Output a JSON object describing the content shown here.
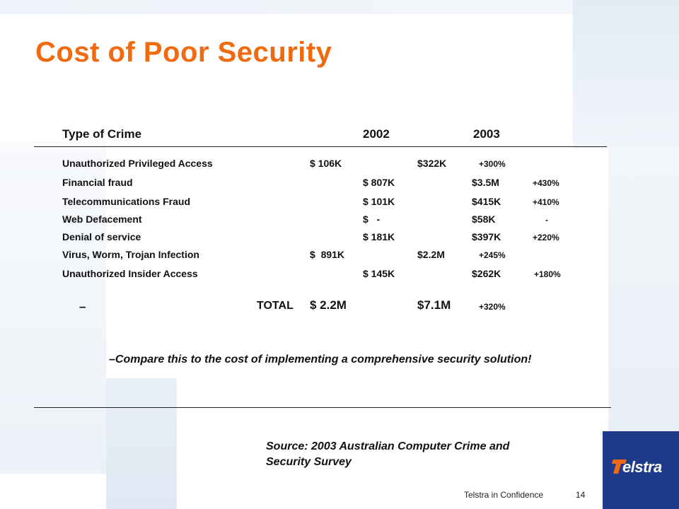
{
  "slide": {
    "title": "Cost of Poor Security",
    "table": {
      "headers": {
        "type": "Type of Crime",
        "y2002": "2002",
        "y2003": "2003"
      },
      "rows": [
        {
          "crime": "Unauthorized  Privileged  Access",
          "v2002": "$ 106K",
          "v2003": "$322K",
          "change": "+300%"
        },
        {
          "crime": "Financial  fraud",
          "v2002": "$ 807K",
          "v2003": "$3.5M",
          "change": "+430%"
        },
        {
          "crime": "Telecommunications  Fraud",
          "v2002": "$ 101K",
          "v2003": "$415K",
          "change": "+410%"
        },
        {
          "crime": "Web Defacement",
          "v2002": "$   -",
          "v2003": "$58K",
          "change": "-"
        },
        {
          "crime": "Denial  of service",
          "v2002": "$ 181K",
          "v2003": "$397K",
          "change": "+220%"
        },
        {
          "crime": "Virus,  Worm,  Trojan Infection",
          "v2002": "$  891K",
          "v2003": "$2.2M",
          "change": "+245%"
        },
        {
          "crime": "Unauthorized  Insider  Access",
          "v2002": "$ 145K",
          "v2003": "$262K",
          "change": "+180%"
        }
      ],
      "total": {
        "dash": "–",
        "label": "TOTAL",
        "v2002": "$ 2.2M",
        "v2003": "$7.1M",
        "change": "+320%"
      }
    },
    "compare_note": "–Compare this to the cost of implementing a comprehensive security solution!",
    "source_line1": "Source: 2003 Australian Computer Crime and",
    "source_line2": "Security Survey",
    "footer": {
      "confidentiality": "Telstra in Confidence",
      "page_number": "14"
    },
    "logo": {
      "text": "elstra",
      "icon": "telstra-t-icon",
      "background": "#1e3a8a"
    },
    "colors": {
      "title": "#f06a10"
    }
  }
}
